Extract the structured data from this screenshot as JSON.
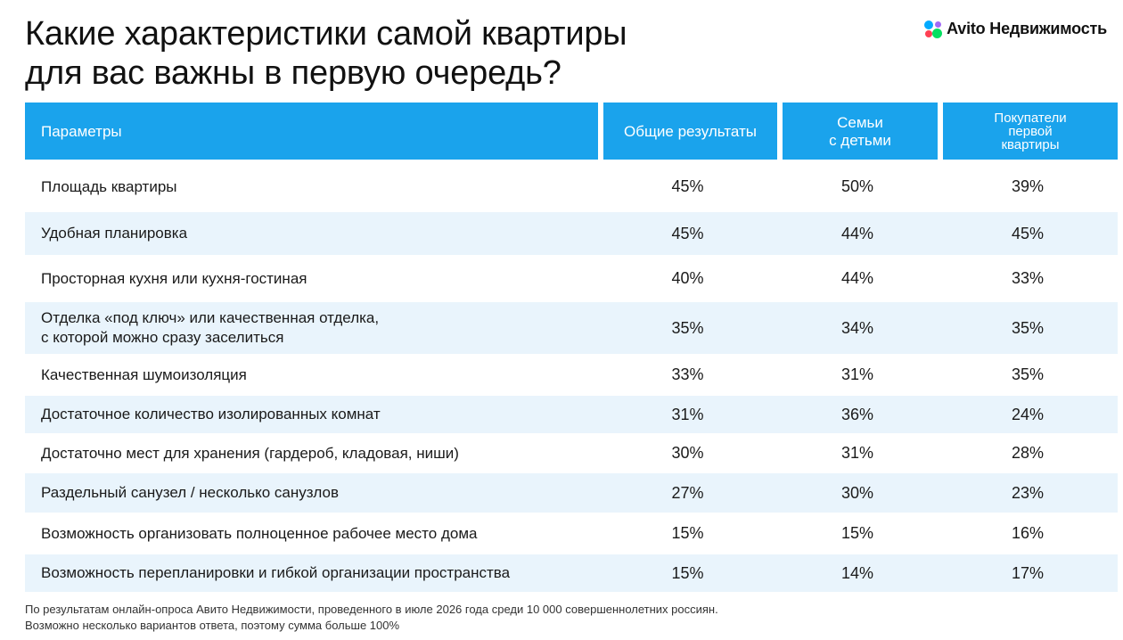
{
  "title": {
    "line1": "Какие характеристики самой квартиры",
    "line2": "для вас важны в первую очередь?"
  },
  "logo": {
    "icon": "avito-dots-icon",
    "colors": [
      "#00aaff",
      "#a169f7",
      "#ff4053",
      "#04e061"
    ],
    "text": "Avito Недвижимость"
  },
  "table": {
    "header_color": "#1aa3ec",
    "alt_row_color": "#e9f4fc",
    "headers": {
      "param": "Параметры",
      "total": "Общие результаты",
      "family": [
        "Семьи",
        "с детьми"
      ],
      "first": [
        "Покупатели",
        "первой",
        "квартиры"
      ]
    },
    "rows": [
      {
        "param": [
          "Площадь квартиры"
        ],
        "total": "45%",
        "family": "50%",
        "first": "39%"
      },
      {
        "param": [
          "Удобная планировка"
        ],
        "total": "45%",
        "family": "44%",
        "first": "45%"
      },
      {
        "param": [
          "Просторная кухня или кухня-гостиная"
        ],
        "total": "40%",
        "family": "44%",
        "first": "33%"
      },
      {
        "param": [
          "Отделка «под ключ» или качественная отделка,",
          "с которой можно сразу заселиться"
        ],
        "total": "35%",
        "family": "34%",
        "first": "35%"
      },
      {
        "param": [
          "Качественная шумоизоляция"
        ],
        "total": "33%",
        "family": "31%",
        "first": "35%"
      },
      {
        "param": [
          "Достаточное количество изолированных комнат"
        ],
        "total": "31%",
        "family": "36%",
        "first": "24%"
      },
      {
        "param": [
          "Достаточно мест для хранения (гардероб, кладовая, ниши)"
        ],
        "total": "30%",
        "family": "31%",
        "first": "28%"
      },
      {
        "param": [
          "Раздельный санузел / несколько санузлов"
        ],
        "total": "27%",
        "family": "30%",
        "first": "23%"
      },
      {
        "param": [
          "Возможность организовать полноценное рабочее место дома"
        ],
        "total": "15%",
        "family": "15%",
        "first": "16%"
      },
      {
        "param": [
          "Возможность перепланировки и гибкой организации пространства"
        ],
        "total": "15%",
        "family": "14%",
        "first": "17%"
      }
    ]
  },
  "footnote": {
    "line1": "По результатам онлайн-опроса Авито Недвижимости, проведенного в июле 2026 года среди 10 000 совершеннолетних россиян.",
    "line2": "Возможно несколько вариантов ответа, поэтому сумма больше 100%"
  }
}
